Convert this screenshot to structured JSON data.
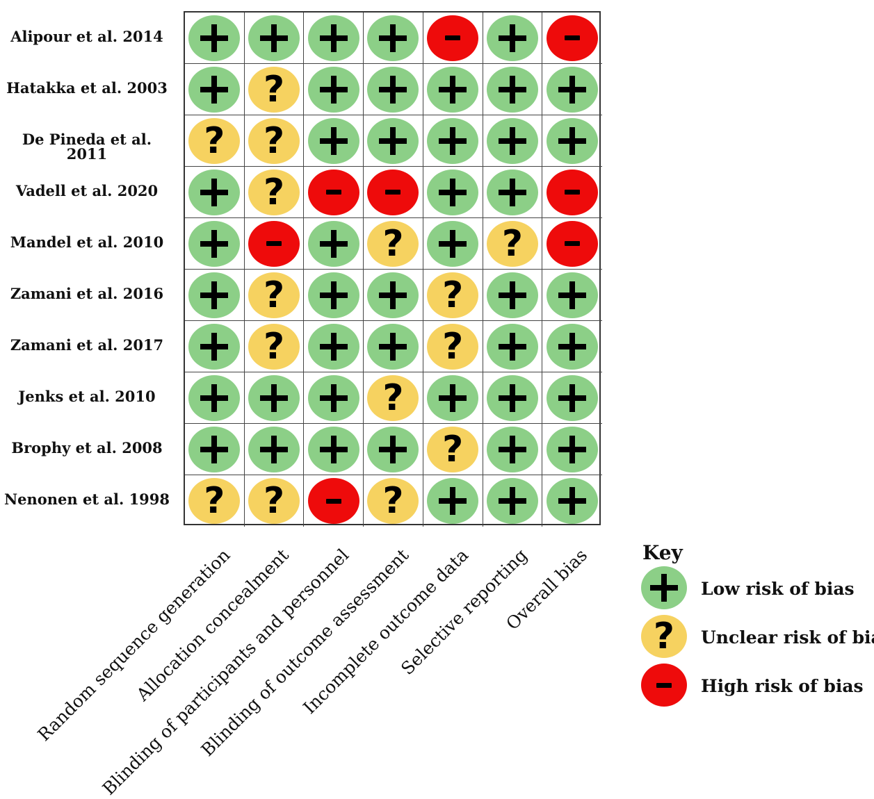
{
  "studies": [
    "Alipour et al. 2014",
    "Hatakka  et al. 2003",
    "De Pineda et al. 2011",
    "Vadell et al. 2020",
    "Mandel et al. 2010",
    "Zamani et al. 2016",
    "Zamani et al. 2017",
    "Jenks et al. 2010",
    "Brophy et al. 2008",
    "Nenonen et al. 1998"
  ],
  "domains": [
    "Random sequence generation",
    "Allocation concealment",
    "Blinding of participants and personnel",
    "Blinding of outcome assessment",
    "Incomplete outcome data",
    "Selective reporting",
    "Overall bias"
  ],
  "judgements": [
    [
      "low",
      "low",
      "low",
      "low",
      "high",
      "low",
      "high"
    ],
    [
      "low",
      "unclear",
      "low",
      "low",
      "low",
      "low",
      "low"
    ],
    [
      "unclear",
      "unclear",
      "low",
      "low",
      "low",
      "low",
      "low"
    ],
    [
      "low",
      "unclear",
      "high",
      "high",
      "low",
      "low",
      "high"
    ],
    [
      "low",
      "high",
      "low",
      "unclear",
      "low",
      "unclear",
      "high"
    ],
    [
      "low",
      "unclear",
      "low",
      "low",
      "unclear",
      "low",
      "low"
    ],
    [
      "low",
      "unclear",
      "low",
      "low",
      "unclear",
      "low",
      "low"
    ],
    [
      "low",
      "low",
      "low",
      "unclear",
      "low",
      "low",
      "low"
    ],
    [
      "low",
      "low",
      "low",
      "low",
      "unclear",
      "low",
      "low"
    ],
    [
      "unclear",
      "unclear",
      "high",
      "unclear",
      "low",
      "low",
      "low"
    ]
  ],
  "key": {
    "title": "Key",
    "items": [
      {
        "level": "low",
        "label": "Low risk of bias"
      },
      {
        "level": "unclear",
        "label": "Unclear risk of bias"
      },
      {
        "level": "high",
        "label": "High risk of bias"
      }
    ]
  },
  "colors": {
    "low": "#8ccf87",
    "unclear": "#f6d260",
    "high": "#ee0b0b"
  },
  "symbols": {
    "low": "plus-icon",
    "unclear": "question-icon",
    "high": "minus-icon"
  }
}
